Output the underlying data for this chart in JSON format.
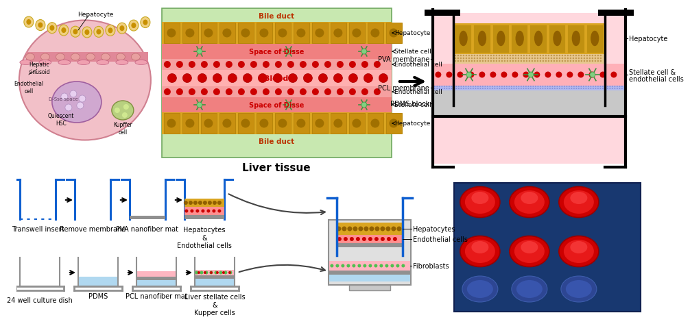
{
  "liver_tissue_label": "Liver tissue",
  "top_right_labels": {
    "hepatocyte": "Hepatocyte",
    "pva_membrane": "PVA membrane",
    "pcl_membrane": "PCL membrane",
    "pdms_block": "PDMS block",
    "stellate_endo": "Stellate cell &\nendothelial cells"
  },
  "top_mid_right_labels": {
    "hepatocyte": "Hepatocyte",
    "stellate": "Stellate cell",
    "endo": "Endothelial cell"
  },
  "bottom_top_labels": [
    "Transwell insert",
    "Remove membrane",
    "PVA nanofiber mat",
    "Hepatocytes\n&\nEndothelial cells"
  ],
  "bottom_bot_labels": [
    "24 well culture dish",
    "PDMS",
    "PCL nanofiber mat",
    "Liver stellate cells\n&\nKupper cells"
  ],
  "final_labels": [
    "Hepatocytes",
    "Endothelial cells",
    "Fibroblasts"
  ],
  "colors": {
    "green_bg": "#C8E8B0",
    "yellow_hep": "#DAA520",
    "yellow_hep_inner": "#B8860B",
    "pink_disse": "#F08080",
    "pink_endo": "#F5A0A0",
    "pink_blood": "#FFB0B0",
    "red_dot": "#CC0000",
    "green_stellate": "#80D080",
    "green_stellate_arm": "#409040",
    "pink_bg_right": "#FFD0D8",
    "pva_tan": "#E8C890",
    "pcl_blue": "#C0C0F0",
    "pdms_gray": "#C8C8C8",
    "blue_wall": "#1E90FF",
    "black": "#000000",
    "white": "#FFFFFF",
    "gray": "#808080",
    "light_blue": "#ADD8E6",
    "light_pink": "#FFB6C1",
    "photo_bg": "#1040A0",
    "photo_well_red": "#CC1010",
    "photo_well_inner": "#FF3030"
  },
  "figure_bg": "#FFFFFF"
}
